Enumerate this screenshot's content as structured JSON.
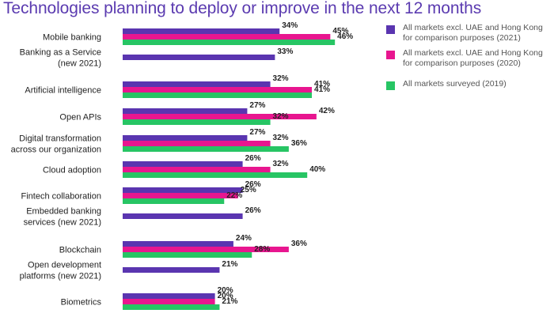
{
  "colors": {
    "title": "#5b3bb0",
    "s2021": "#5a35b0",
    "s2020": "#e8168f",
    "s2019": "#27c564"
  },
  "chart_data": {
    "type": "bar",
    "title": "Technologies planning to deploy or improve in the next 12 months",
    "xlabel": "",
    "ylabel": "",
    "unit": "%",
    "orientation": "horizontal",
    "grid": false,
    "legend_position": "top-right",
    "categories": [
      "Mobile banking",
      "Banking as a Service (new 2021)",
      "Artificial intelligence",
      "Open APIs",
      "Digital transformation across our organization",
      "Cloud adoption",
      "Fintech collaboration",
      "Embedded banking services (new 2021)",
      "Blockchain",
      "Open development platforms (new 2021)",
      "Biometrics"
    ],
    "category_lines": [
      [
        "Mobile banking"
      ],
      [
        "Banking as a Service",
        "(new 2021)"
      ],
      [
        "Artificial intelligence"
      ],
      [
        "Open APIs"
      ],
      [
        "Digital transformation",
        "across our organization"
      ],
      [
        "Cloud adoption"
      ],
      [
        "Fintech collaboration"
      ],
      [
        "Embedded banking",
        "services (new 2021)"
      ],
      [
        "Blockchain"
      ],
      [
        "Open development",
        "platforms (new 2021)"
      ],
      [
        "Biometrics"
      ]
    ],
    "series": [
      {
        "name": "All markets excl. UAE and Hong Kong for comparison purposes (2021)",
        "legend_lines": [
          "All markets excl. UAE and Hong Kong",
          "for comparison purposes (2021)"
        ],
        "color": "#5a35b0",
        "values": [
          34,
          33,
          32,
          27,
          27,
          26,
          26,
          26,
          24,
          21,
          20
        ]
      },
      {
        "name": "All markets excl. UAE and Hong Kong for comparison purposes (2020)",
        "legend_lines": [
          "All markets excl. UAE and Hong Kong",
          "for comparison purposes (2020)"
        ],
        "color": "#e8168f",
        "values": [
          45,
          null,
          41,
          42,
          32,
          32,
          25,
          null,
          36,
          null,
          20
        ]
      },
      {
        "name": "All markets surveyed (2019)",
        "legend_lines": [
          "All markets surveyed (2019)"
        ],
        "color": "#27c564",
        "values": [
          46,
          null,
          41,
          32,
          36,
          40,
          22,
          null,
          28,
          null,
          21
        ]
      }
    ]
  }
}
